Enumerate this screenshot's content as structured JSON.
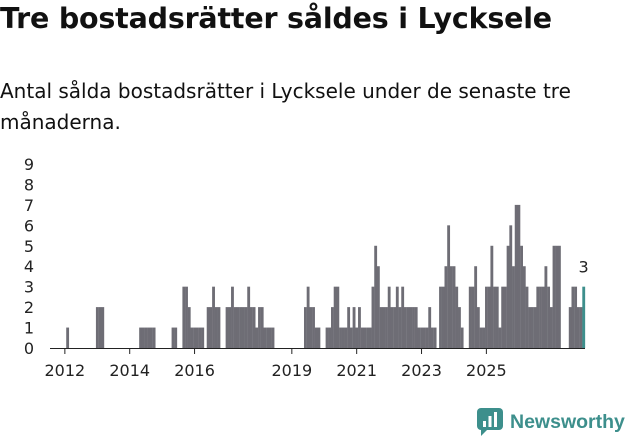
{
  "header": {
    "title": "Tre bostadsrätter såldes i Lycksele",
    "subtitle": "Antal sålda bostadsrätter i Lycksele under de senaste tre månaderna."
  },
  "brand": {
    "name": "Newsworthy"
  },
  "colors": {
    "bar": "#6e6d75",
    "highlight": "#3d8f8c",
    "axis": "#222222",
    "text": "#222222"
  },
  "chart_data": {
    "type": "bar",
    "title": "Tre bostadsrätter såldes i Lycksele",
    "subtitle": "Antal sålda bostadsrätter i Lycksele under de senaste tre månaderna.",
    "xlabel": "",
    "ylabel": "",
    "ylim": [
      0,
      9
    ],
    "yticks": [
      "0",
      "1",
      "2",
      "3",
      "4",
      "5",
      "6",
      "7",
      "8",
      "9"
    ],
    "xticks": [
      {
        "label": "2012",
        "month": "2012-01"
      },
      {
        "label": "2014",
        "month": "2014-01"
      },
      {
        "label": "2016",
        "month": "2016-01"
      },
      {
        "label": "2019",
        "month": "2019-01"
      },
      {
        "label": "2021",
        "month": "2021-01"
      },
      {
        "label": "2023",
        "month": "2023-01"
      },
      {
        "label": "2025",
        "month": "2025-01"
      }
    ],
    "start_month": "2011-08",
    "values": [
      0,
      0,
      0,
      0,
      0,
      0,
      1,
      0,
      0,
      0,
      0,
      0,
      0,
      0,
      0,
      0,
      0,
      2,
      2,
      2,
      0,
      0,
      0,
      0,
      0,
      0,
      0,
      0,
      0,
      0,
      0,
      0,
      0,
      1,
      1,
      1,
      1,
      1,
      1,
      0,
      0,
      0,
      0,
      0,
      0,
      1,
      1,
      0,
      0,
      3,
      3,
      2,
      1,
      1,
      1,
      1,
      1,
      0,
      2,
      2,
      3,
      2,
      2,
      0,
      0,
      2,
      2,
      3,
      2,
      2,
      2,
      2,
      2,
      3,
      2,
      2,
      1,
      2,
      2,
      1,
      1,
      1,
      1,
      0,
      0,
      0,
      0,
      0,
      0,
      0,
      0,
      0,
      0,
      0,
      2,
      3,
      2,
      2,
      1,
      1,
      0,
      0,
      1,
      1,
      2,
      3,
      3,
      1,
      1,
      1,
      2,
      1,
      2,
      1,
      2,
      1,
      1,
      1,
      1,
      3,
      5,
      4,
      2,
      2,
      2,
      3,
      2,
      2,
      3,
      2,
      3,
      2,
      2,
      2,
      2,
      2,
      1,
      1,
      1,
      1,
      2,
      1,
      1,
      0,
      3,
      3,
      4,
      6,
      4,
      4,
      3,
      2,
      1,
      0,
      0,
      3,
      3,
      4,
      2,
      1,
      1,
      3,
      3,
      5,
      3,
      3,
      1,
      3,
      3,
      5,
      6,
      4,
      7,
      7,
      5,
      4,
      3,
      2,
      2,
      2,
      3,
      3,
      3,
      4,
      3,
      2,
      5,
      5,
      5,
      0,
      0,
      0,
      2,
      3,
      3,
      2,
      2,
      3
    ],
    "highlight_last": true,
    "annotations": [
      {
        "text": "3",
        "target": "last"
      }
    ]
  }
}
